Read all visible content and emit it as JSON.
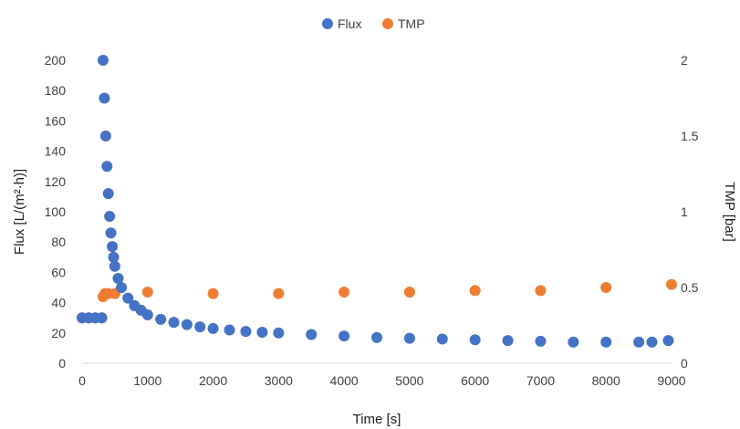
{
  "chart_data": {
    "type": "scatter",
    "legend": {
      "position": "top",
      "entries": [
        "Flux",
        "TMP"
      ]
    },
    "grid": false,
    "x_axis": {
      "label": "Time [s]",
      "range": [
        0,
        9000
      ],
      "ticks": [
        "0",
        "1000",
        "2000",
        "3000",
        "4000",
        "5000",
        "6000",
        "7000",
        "8000",
        "9000"
      ]
    },
    "y_axis_left": {
      "label": "Flux [L/(m²·h)]",
      "range": [
        0,
        200
      ],
      "ticks": [
        "0",
        "20",
        "40",
        "60",
        "80",
        "100",
        "120",
        "140",
        "160",
        "180",
        "200"
      ]
    },
    "y_axis_right": {
      "label": "TMP [bar]",
      "range": [
        0,
        2
      ],
      "ticks": [
        "0",
        "0.5",
        "1",
        "1.5",
        "2"
      ]
    },
    "series": [
      {
        "name": "Flux",
        "axis": "left",
        "color": "#4472C4",
        "x": [
          0,
          100,
          200,
          300,
          320,
          340,
          360,
          380,
          400,
          420,
          440,
          460,
          480,
          500,
          550,
          600,
          700,
          800,
          900,
          1000,
          1200,
          1400,
          1600,
          1800,
          2000,
          2250,
          2500,
          2750,
          3000,
          3500,
          4000,
          4500,
          5000,
          5500,
          6000,
          6500,
          7000,
          7500,
          8000,
          8500,
          8700,
          8950
        ],
        "y": [
          30,
          30,
          30,
          30,
          200,
          175,
          150,
          130,
          112,
          97,
          86,
          77,
          70,
          64,
          56,
          50,
          43,
          38,
          35,
          32,
          29,
          27,
          25.5,
          24,
          23,
          22,
          21,
          20.5,
          20,
          19,
          18,
          17,
          16.5,
          16,
          15.5,
          15,
          14.5,
          14,
          14,
          14,
          14,
          15
        ]
      },
      {
        "name": "TMP",
        "axis": "right",
        "color": "#ED7D31",
        "x": [
          0,
          100,
          200,
          300,
          320,
          350,
          400,
          500,
          1000,
          2000,
          3000,
          4000,
          5000,
          6000,
          7000,
          8000,
          9000
        ],
        "y": [
          0.3,
          0.3,
          0.3,
          0.3,
          0.44,
          0.46,
          0.46,
          0.46,
          0.47,
          0.46,
          0.46,
          0.47,
          0.47,
          0.48,
          0.48,
          0.5,
          0.52
        ]
      }
    ]
  }
}
